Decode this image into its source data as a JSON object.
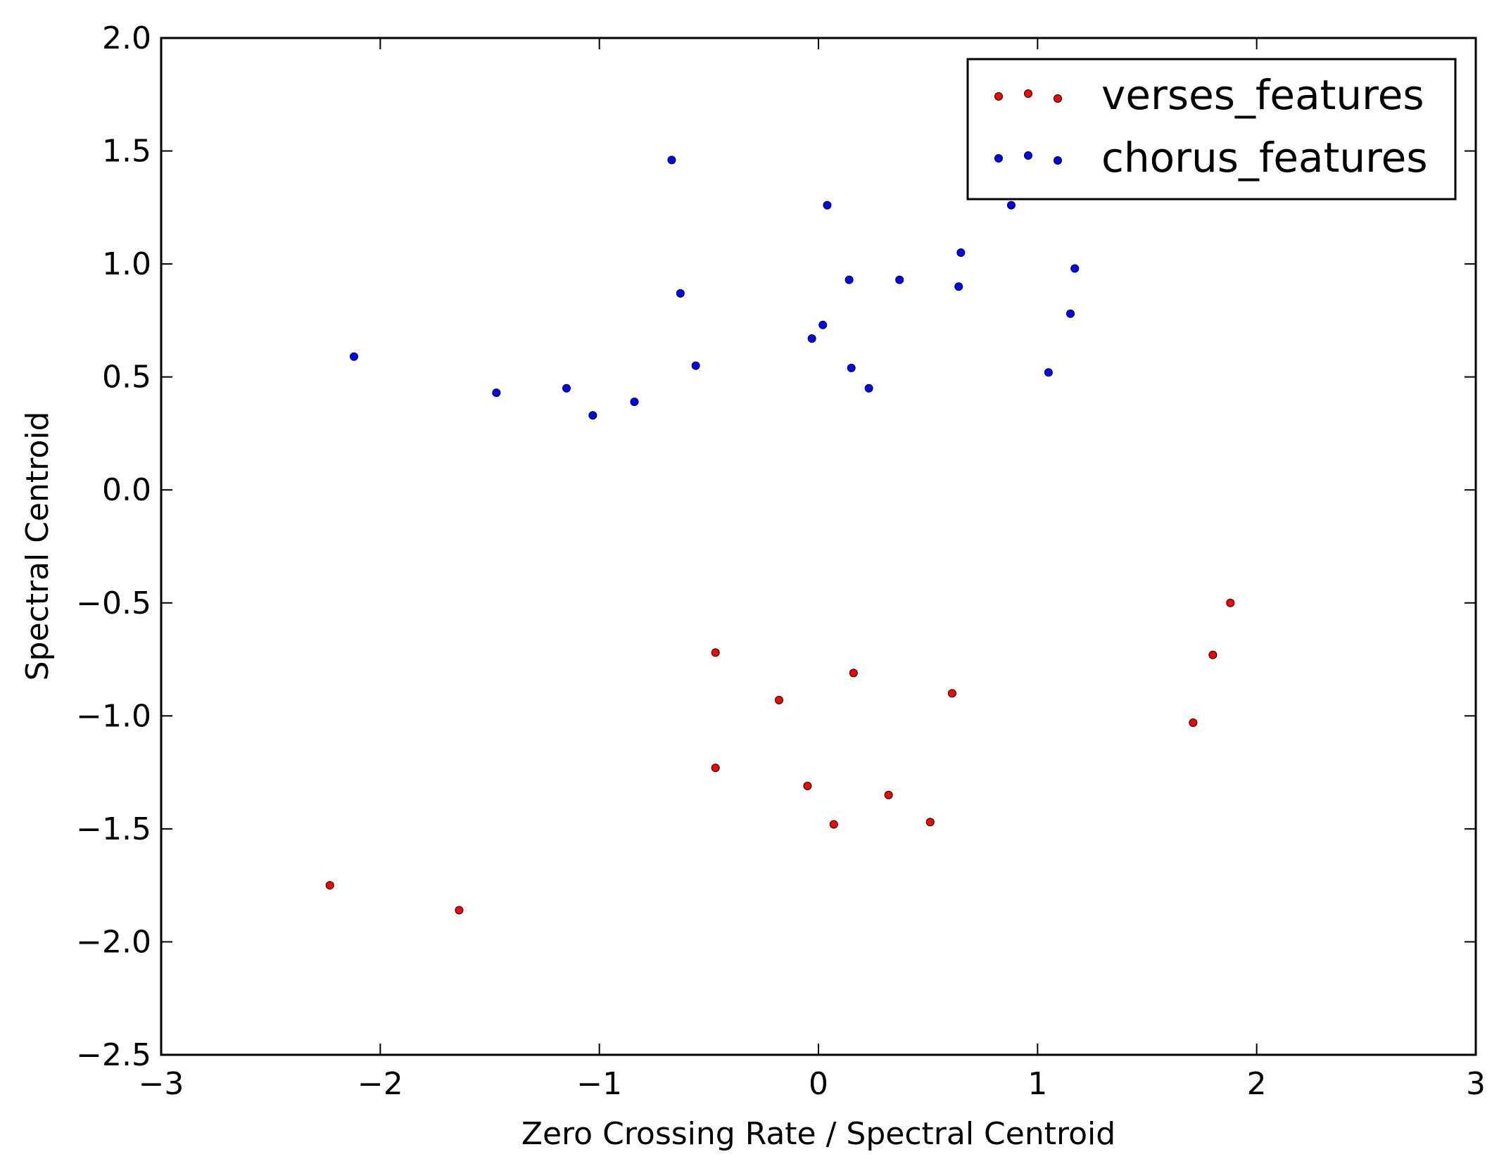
{
  "chart_data": {
    "type": "scatter",
    "xlabel": "Zero Crossing Rate / Spectral Centroid",
    "ylabel": "Spectral Centroid",
    "xlim": [
      -3,
      3
    ],
    "ylim": [
      -2.5,
      2.0
    ],
    "xticks": [
      -3,
      -2,
      -1,
      0,
      1,
      2,
      3
    ],
    "xtick_labels": [
      "−3",
      "−2",
      "−1",
      "0",
      "1",
      "2",
      "3"
    ],
    "yticks": [
      2.0,
      1.5,
      1.0,
      0.5,
      0.0,
      -0.5,
      -1.0,
      -1.5,
      -2.0,
      -2.5
    ],
    "ytick_labels": [
      "2.0",
      "1.5",
      "1.0",
      "0.5",
      "0.0",
      "−0.5",
      "−1.0",
      "−1.5",
      "−2.0",
      "−2.5"
    ],
    "grid": false,
    "legend_position": "top-right",
    "series": [
      {
        "name": "verses_features",
        "color": "#ff0000",
        "points": [
          [
            -2.23,
            -1.75
          ],
          [
            -1.64,
            -1.86
          ],
          [
            -0.47,
            -0.72
          ],
          [
            -0.47,
            -1.23
          ],
          [
            -0.18,
            -0.93
          ],
          [
            -0.05,
            -1.31
          ],
          [
            0.07,
            -1.48
          ],
          [
            0.16,
            -0.81
          ],
          [
            0.32,
            -1.35
          ],
          [
            0.51,
            -1.47
          ],
          [
            0.61,
            -0.9
          ],
          [
            1.71,
            -1.03
          ],
          [
            1.8,
            -0.73
          ],
          [
            1.88,
            -0.5
          ]
        ]
      },
      {
        "name": "chorus_features",
        "color": "#0000ff",
        "points": [
          [
            -2.12,
            0.59
          ],
          [
            -1.47,
            0.43
          ],
          [
            -1.15,
            0.45
          ],
          [
            -1.03,
            0.33
          ],
          [
            -0.84,
            0.39
          ],
          [
            -0.67,
            1.46
          ],
          [
            -0.63,
            0.87
          ],
          [
            -0.56,
            0.55
          ],
          [
            -0.03,
            0.67
          ],
          [
            0.02,
            0.73
          ],
          [
            0.04,
            1.26
          ],
          [
            0.14,
            0.93
          ],
          [
            0.15,
            0.54
          ],
          [
            0.23,
            0.45
          ],
          [
            0.37,
            0.93
          ],
          [
            0.64,
            0.9
          ],
          [
            0.65,
            1.05
          ],
          [
            0.88,
            1.26
          ],
          [
            1.05,
            0.52
          ],
          [
            1.15,
            0.78
          ],
          [
            1.17,
            0.98
          ]
        ]
      }
    ]
  }
}
